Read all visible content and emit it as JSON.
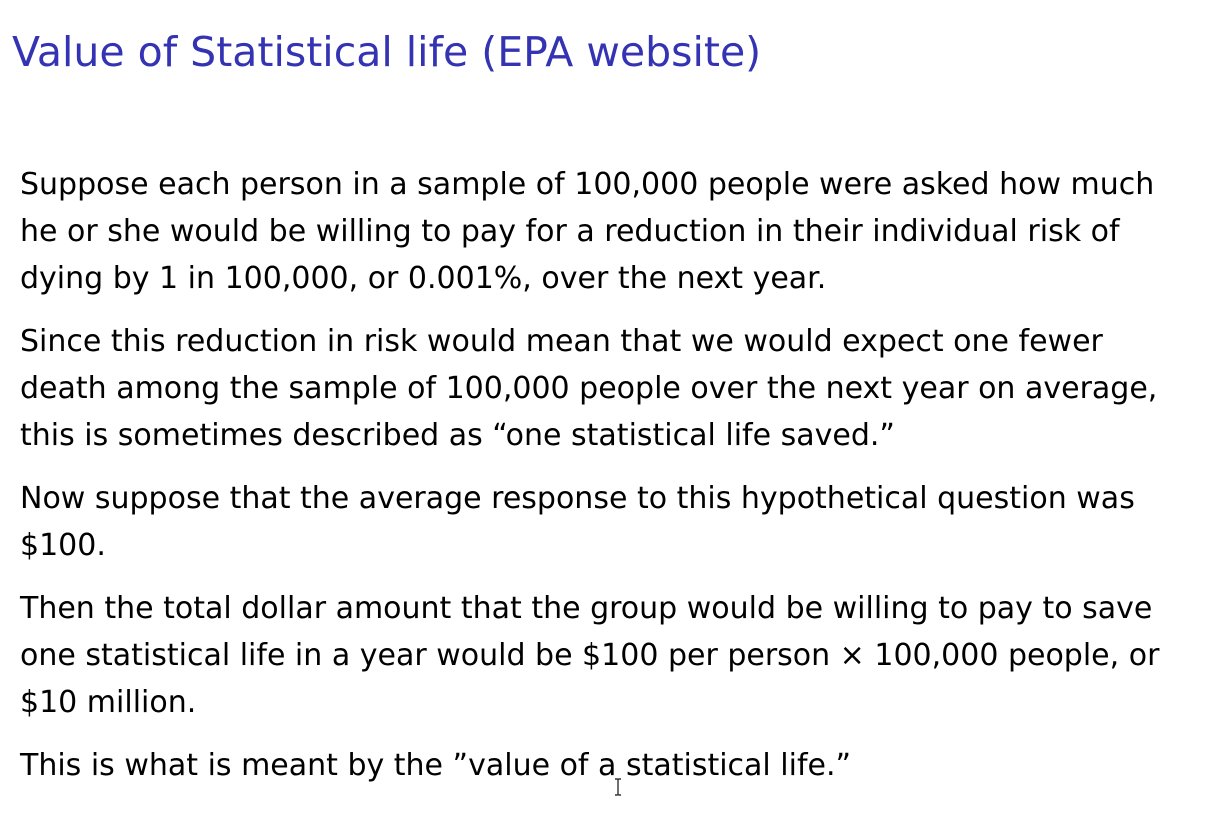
{
  "slide": {
    "title": "Value of Statistical life (EPA website)",
    "paragraphs": [
      "Suppose each person in a sample of 100,000 people were asked how much he or she would be willing to pay for a reduction in their individual risk of dying by 1 in 100,000, or 0.001%, over the next year.",
      "Since this reduction in risk would mean that we would expect one fewer death among the sample of 100,000 people over the next year on average, this is sometimes described as “one statistical life saved.”",
      "Now suppose that the average response to this hypothetical question was $100.",
      "Then the total dollar amount that the group would be willing to pay to save one statistical life in a year would be $100 per person × 100,000 people, or $10 million.",
      "This is what is meant by the ”value of a statistical life.”"
    ]
  },
  "colors": {
    "title": "#3333b3",
    "text": "#000000",
    "background": "#ffffff"
  },
  "icons": {
    "cursor": "text-ibeam-cursor"
  }
}
